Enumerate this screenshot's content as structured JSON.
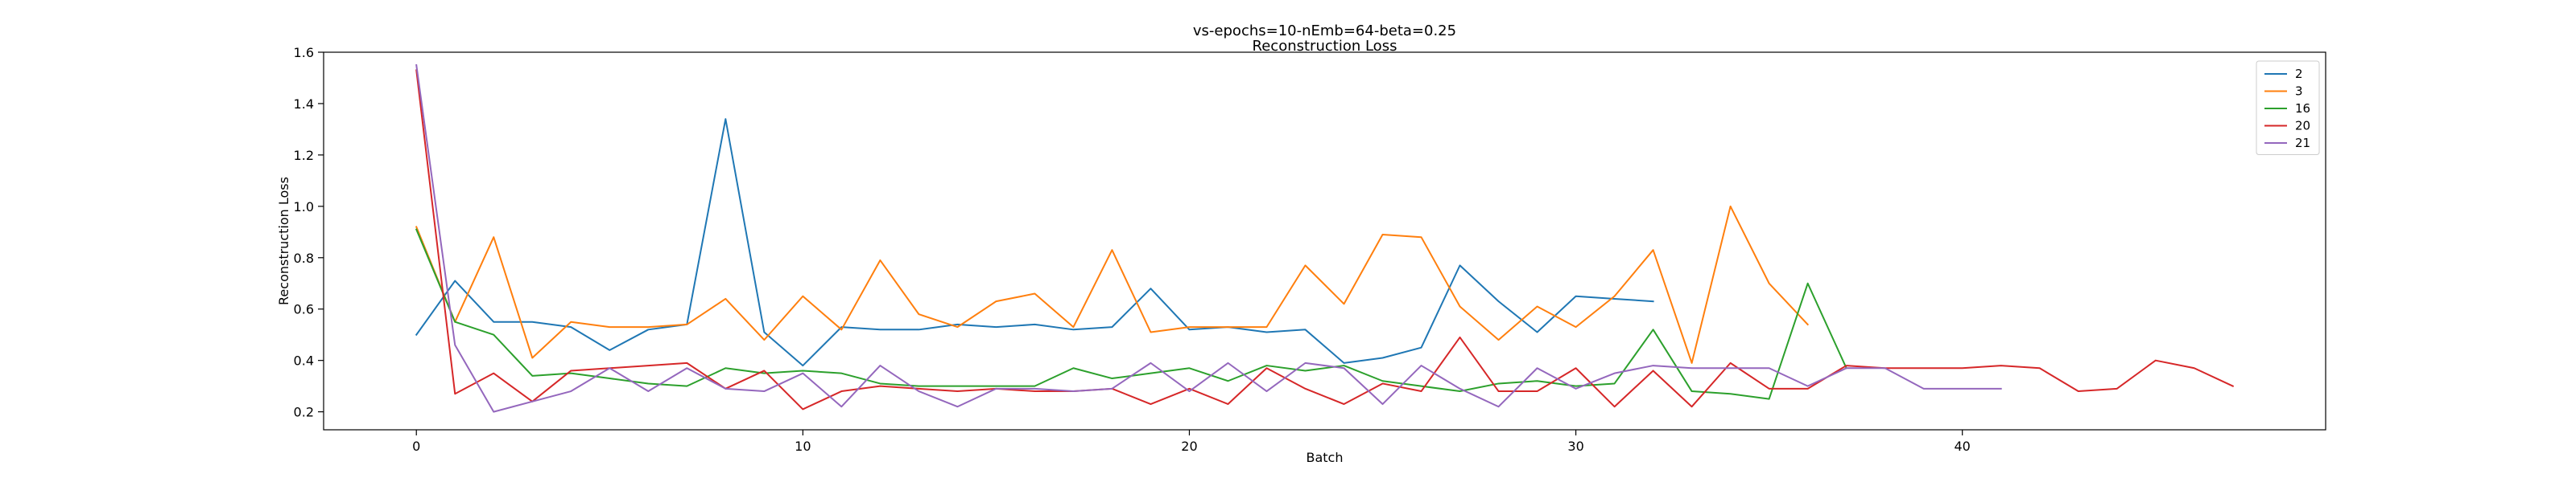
{
  "chart_data": {
    "type": "line",
    "title": "vs-epochs=10-nEmb=64-beta=0.25",
    "subtitle": "Reconstruction Loss",
    "xlabel": "Batch",
    "ylabel": "Reconstruction Loss",
    "xlim": [
      -2.4,
      49.4
    ],
    "ylim": [
      0.13,
      1.6
    ],
    "xticks": [
      0,
      10,
      20,
      30,
      40
    ],
    "yticks": [
      0.2,
      0.4,
      0.6,
      0.8,
      1.0,
      1.2,
      1.4,
      1.6
    ],
    "xtick_labels": [
      "0",
      "10",
      "20",
      "30",
      "40"
    ],
    "ytick_labels": [
      "0.2",
      "0.4",
      "0.6",
      "0.8",
      "1.0",
      "1.2",
      "1.4",
      "1.6"
    ],
    "grid": false,
    "legend_position": "top-right",
    "series": [
      {
        "name": "2",
        "color": "#1f77b4",
        "values": [
          0.5,
          0.71,
          0.55,
          0.55,
          0.53,
          0.44,
          0.52,
          0.54,
          1.34,
          0.51,
          0.38,
          0.53,
          0.52,
          0.52,
          0.54,
          0.53,
          0.54,
          0.52,
          0.53,
          0.68,
          0.52,
          0.53,
          0.51,
          0.52,
          0.39,
          0.41,
          0.45,
          0.77,
          0.63,
          0.51,
          0.65,
          0.64,
          0.63
        ]
      },
      {
        "name": "3",
        "color": "#ff7f0e",
        "values": [
          0.92,
          0.55,
          0.88,
          0.41,
          0.55,
          0.53,
          0.53,
          0.54,
          0.64,
          0.48,
          0.65,
          0.52,
          0.79,
          0.58,
          0.53,
          0.63,
          0.66,
          0.53,
          0.83,
          0.51,
          0.53,
          0.53,
          0.53,
          0.77,
          0.62,
          0.89,
          0.88,
          0.61,
          0.48,
          0.61,
          0.53,
          0.65,
          0.83,
          0.39,
          1.0,
          0.7,
          0.54
        ]
      },
      {
        "name": "16",
        "color": "#2ca02c",
        "values": [
          0.91,
          0.55,
          0.5,
          0.34,
          0.35,
          0.33,
          0.31,
          0.3,
          0.37,
          0.35,
          0.36,
          0.35,
          0.31,
          0.3,
          0.3,
          0.3,
          0.3,
          0.37,
          0.33,
          0.35,
          0.37,
          0.32,
          0.38,
          0.36,
          0.38,
          0.32,
          0.3,
          0.28,
          0.31,
          0.32,
          0.3,
          0.31,
          0.52,
          0.28,
          0.27,
          0.25,
          0.7,
          0.37
        ]
      },
      {
        "name": "20",
        "color": "#d62728",
        "values": [
          1.53,
          0.27,
          0.35,
          0.24,
          0.36,
          0.37,
          0.38,
          0.39,
          0.29,
          0.36,
          0.21,
          0.28,
          0.3,
          0.29,
          0.28,
          0.29,
          0.28,
          0.28,
          0.29,
          0.23,
          0.29,
          0.23,
          0.37,
          0.29,
          0.23,
          0.31,
          0.28,
          0.49,
          0.28,
          0.28,
          0.37,
          0.22,
          0.36,
          0.22,
          0.39,
          0.29,
          0.29,
          0.38,
          0.37,
          0.37,
          0.37,
          0.38,
          0.37,
          0.28,
          0.29,
          0.4,
          0.37,
          0.3
        ]
      },
      {
        "name": "21",
        "color": "#9467bd",
        "values": [
          1.55,
          0.46,
          0.2,
          0.24,
          0.28,
          0.37,
          0.28,
          0.37,
          0.29,
          0.28,
          0.35,
          0.22,
          0.38,
          0.28,
          0.22,
          0.29,
          0.29,
          0.28,
          0.29,
          0.39,
          0.28,
          0.39,
          0.28,
          0.39,
          0.37,
          0.23,
          0.38,
          0.29,
          0.22,
          0.37,
          0.29,
          0.35,
          0.38,
          0.37,
          0.37,
          0.37,
          0.3,
          0.37,
          0.37,
          0.29,
          0.29,
          0.29
        ]
      }
    ]
  }
}
